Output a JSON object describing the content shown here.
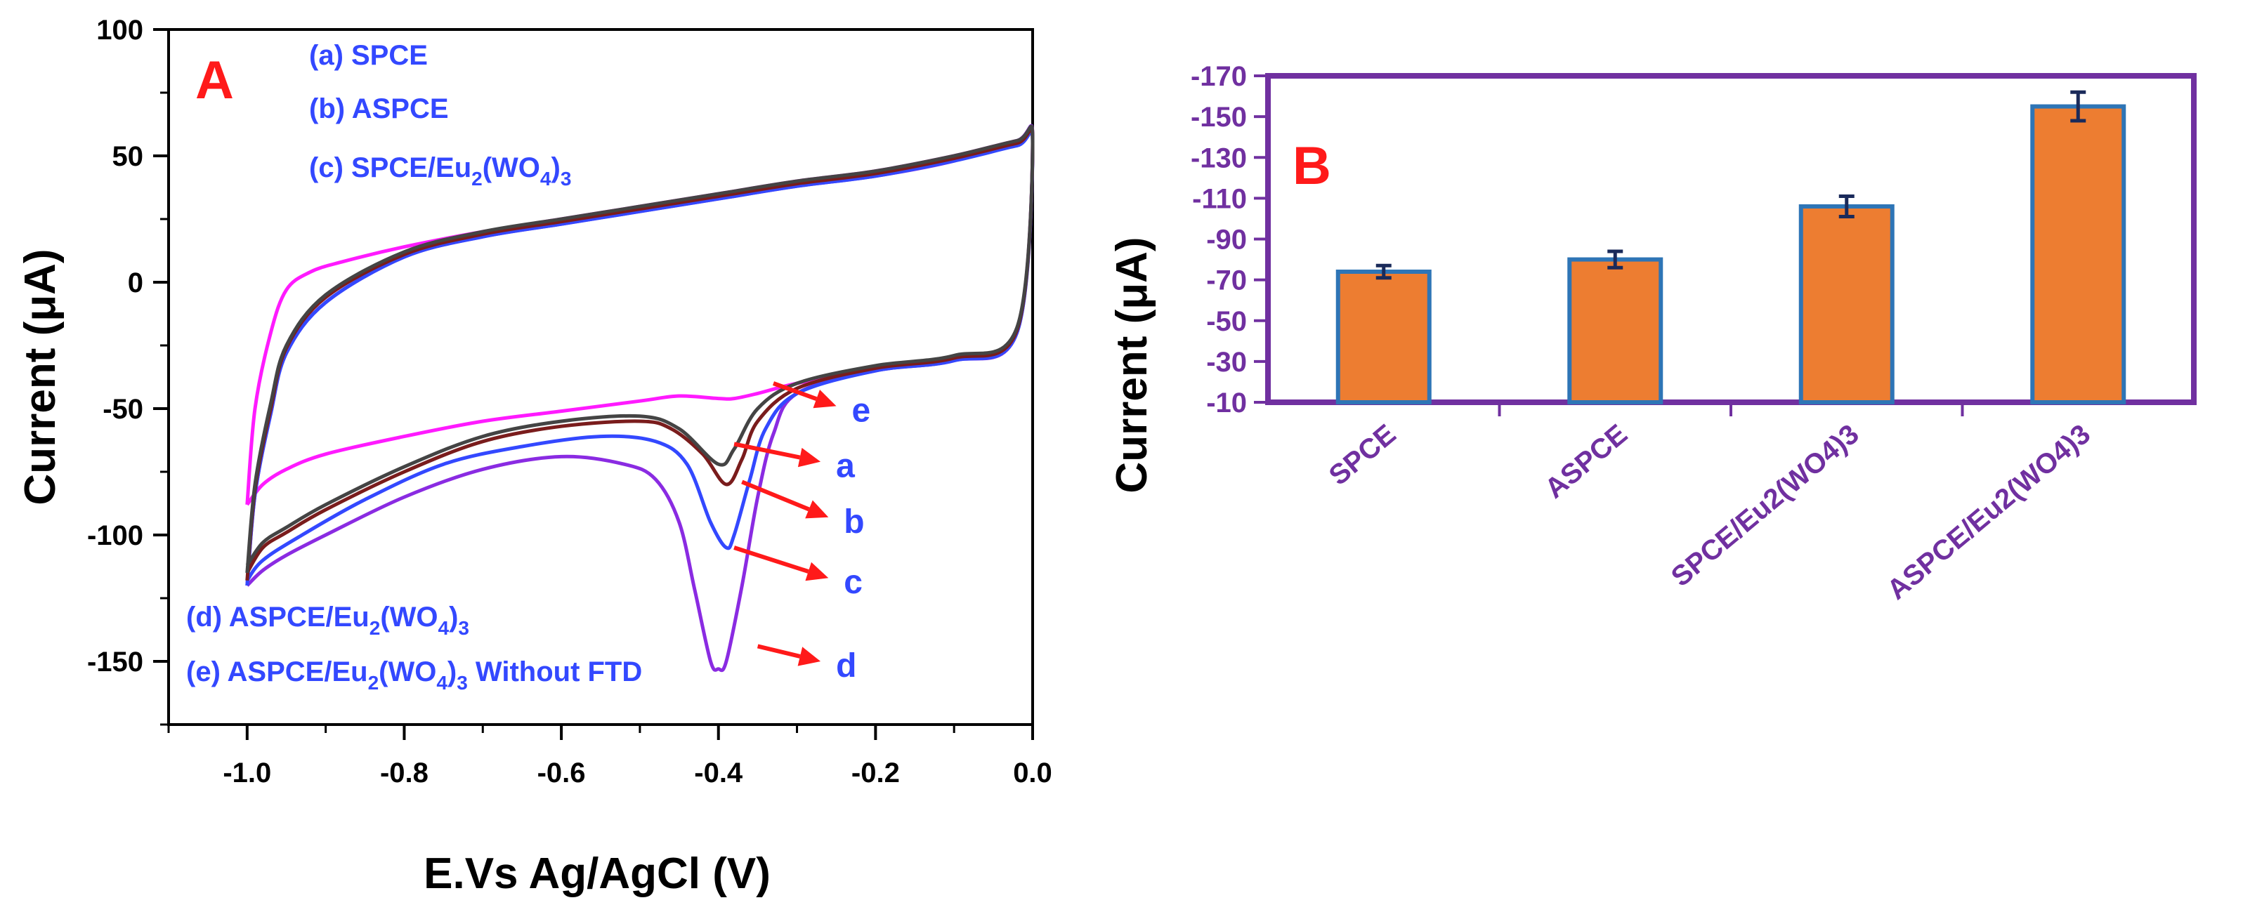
{
  "chart_data": [
    {
      "panel": "A",
      "type": "line",
      "title": "",
      "panel_label": "A",
      "xlabel": "E.Vs Ag/AgCl (V)",
      "ylabel": "Current (μA)",
      "xlim": [
        -1.1,
        0.0
      ],
      "ylim": [
        -175,
        100
      ],
      "xticks": [
        -1.0,
        -0.8,
        -0.6,
        -0.4,
        -0.2,
        0.0
      ],
      "xtick_labels": [
        "-1.0",
        "-0.8",
        "-0.6",
        "-0.4",
        "-0.2",
        "0.0"
      ],
      "yticks": [
        100,
        50,
        0,
        -50,
        -100,
        -150
      ],
      "ytick_labels": [
        "100",
        "50",
        "0",
        "-50",
        "-100",
        "-150"
      ],
      "legend": [
        {
          "key": "a",
          "prefix": "(a) ",
          "text": "SPCE",
          "sub": [],
          "suffix": ""
        },
        {
          "key": "b",
          "prefix": "(b) ",
          "text": "ASPCE",
          "sub": [],
          "suffix": ""
        },
        {
          "key": "c",
          "prefix": "(c) ",
          "text": "SPCE/Eu",
          "sub": [
            "2",
            "(WO",
            "4",
            ")",
            "3"
          ],
          "suffix": ""
        },
        {
          "key": "d",
          "prefix": "(d) ",
          "text": "ASPCE/Eu",
          "sub": [
            "2",
            "(WO",
            "4",
            ")",
            "3"
          ],
          "suffix": ""
        },
        {
          "key": "e",
          "prefix": "(e) ",
          "text": "ASPCE/Eu",
          "sub": [
            "2",
            "(WO",
            "4",
            ")",
            "3"
          ],
          "suffix": " Without FTD"
        }
      ],
      "series": [
        {
          "name": "a",
          "color": "#444444",
          "x": [
            -1.0,
            -0.99,
            -0.97,
            -0.95,
            -0.9,
            -0.8,
            -0.7,
            -0.6,
            -0.5,
            -0.4,
            -0.3,
            -0.2,
            -0.1,
            -0.02,
            0.0,
            -0.02,
            -0.1,
            -0.2,
            -0.3,
            -0.35,
            -0.38,
            -0.4,
            -0.45,
            -0.5,
            -0.6,
            -0.7,
            -0.8,
            -0.9,
            -0.95,
            -0.98,
            -1.0
          ],
          "y": [
            -115,
            -80,
            -48,
            -25,
            -5,
            12,
            20,
            25,
            30,
            35,
            40,
            44,
            50,
            56,
            56,
            -18,
            -29,
            -33,
            -40,
            -50,
            -66,
            -72,
            -58,
            -53,
            -55,
            -61,
            -73,
            -88,
            -97,
            -103,
            -112
          ]
        },
        {
          "name": "b",
          "color": "#7a1c1c",
          "x": [
            -1.0,
            -0.99,
            -0.97,
            -0.95,
            -0.9,
            -0.8,
            -0.7,
            -0.6,
            -0.5,
            -0.4,
            -0.3,
            -0.2,
            -0.1,
            -0.02,
            0.0,
            -0.02,
            -0.1,
            -0.2,
            -0.3,
            -0.35,
            -0.37,
            -0.39,
            -0.42,
            -0.46,
            -0.5,
            -0.6,
            -0.7,
            -0.8,
            -0.9,
            -0.95,
            -0.98,
            -1.0
          ],
          "y": [
            -118,
            -82,
            -50,
            -26,
            -6,
            11,
            19,
            24,
            29,
            34,
            39,
            43,
            49,
            55,
            55,
            -19,
            -30,
            -34,
            -42,
            -55,
            -70,
            -80,
            -68,
            -58,
            -55,
            -57,
            -63,
            -75,
            -90,
            -99,
            -105,
            -115
          ]
        },
        {
          "name": "c",
          "color": "#3348ff",
          "x": [
            -1.0,
            -0.99,
            -0.97,
            -0.95,
            -0.9,
            -0.8,
            -0.7,
            -0.6,
            -0.5,
            -0.4,
            -0.3,
            -0.2,
            -0.1,
            -0.02,
            0.0,
            -0.02,
            -0.1,
            -0.2,
            -0.3,
            -0.34,
            -0.36,
            -0.38,
            -0.39,
            -0.41,
            -0.44,
            -0.48,
            -0.55,
            -0.65,
            -0.75,
            -0.85,
            -0.93,
            -0.98,
            -1.0
          ],
          "y": [
            -120,
            -84,
            -52,
            -28,
            -8,
            10,
            18,
            23,
            28,
            33,
            38,
            42,
            48,
            54,
            54,
            -20,
            -31,
            -35,
            -44,
            -58,
            -78,
            -100,
            -105,
            -95,
            -72,
            -63,
            -61,
            -65,
            -72,
            -86,
            -100,
            -110,
            -118
          ]
        },
        {
          "name": "d",
          "color": "#8a2be2",
          "x": [
            -1.0,
            -0.99,
            -0.97,
            -0.95,
            -0.9,
            -0.8,
            -0.7,
            -0.6,
            -0.5,
            -0.4,
            -0.3,
            -0.2,
            -0.1,
            -0.02,
            0.0,
            -0.02,
            -0.1,
            -0.2,
            -0.3,
            -0.33,
            -0.35,
            -0.37,
            -0.39,
            -0.4,
            -0.41,
            -0.43,
            -0.45,
            -0.48,
            -0.52,
            -0.6,
            -0.7,
            -0.8,
            -0.9,
            -0.95,
            -0.98,
            -1.0
          ],
          "y": [
            -120,
            -84,
            -52,
            -28,
            -8,
            10,
            18,
            23,
            28,
            33,
            38,
            42,
            48,
            56,
            56,
            -20,
            -31,
            -35,
            -44,
            -60,
            -85,
            -120,
            -150,
            -153,
            -150,
            -122,
            -95,
            -78,
            -72,
            -69,
            -74,
            -85,
            -100,
            -108,
            -114,
            -120
          ]
        },
        {
          "name": "e",
          "color": "#ff1aff",
          "x": [
            -1.0,
            -0.99,
            -0.97,
            -0.95,
            -0.92,
            -0.88,
            -0.8,
            -0.7,
            -0.6,
            -0.5,
            -0.4,
            -0.3,
            -0.2,
            -0.1,
            -0.02,
            0.0,
            -0.02,
            -0.1,
            -0.2,
            -0.3,
            -0.35,
            -0.38,
            -0.4,
            -0.45,
            -0.5,
            -0.6,
            -0.7,
            -0.8,
            -0.9,
            -0.95,
            -0.98,
            -1.0
          ],
          "y": [
            -88,
            -50,
            -20,
            -3,
            4,
            8,
            14,
            20,
            25,
            30,
            35,
            40,
            44,
            50,
            56,
            56,
            -19,
            -30,
            -34,
            -40,
            -44,
            -46,
            -46,
            -45,
            -47,
            -51,
            -55,
            -61,
            -68,
            -74,
            -80,
            -88
          ]
        }
      ],
      "arrows": [
        {
          "label": "e",
          "from": [
            -0.33,
            -40
          ],
          "to": [
            -0.25,
            -49
          ]
        },
        {
          "label": "a",
          "from": [
            -0.38,
            -64
          ],
          "to": [
            -0.27,
            -71
          ]
        },
        {
          "label": "b",
          "from": [
            -0.37,
            -79
          ],
          "to": [
            -0.26,
            -93
          ]
        },
        {
          "label": "c",
          "from": [
            -0.38,
            -105
          ],
          "to": [
            -0.26,
            -117
          ]
        },
        {
          "label": "d",
          "from": [
            -0.35,
            -144
          ],
          "to": [
            -0.27,
            -150
          ]
        }
      ]
    },
    {
      "panel": "B",
      "type": "bar",
      "title": "",
      "panel_label": "B",
      "xlabel": "",
      "ylabel": "Current (μA)",
      "ylim": [
        -170,
        -10
      ],
      "yaxis_inverted": true,
      "yticks": [
        -170,
        -150,
        -130,
        -110,
        -90,
        -70,
        -50,
        -30,
        -10
      ],
      "ytick_labels": [
        "-170",
        "-150",
        "-130",
        "-110",
        "-90",
        "-70",
        "-50",
        "-30",
        "-10"
      ],
      "categories": [
        "SPCE",
        "ASPCE",
        "SPCE/Eu2(WO4)3",
        "ASPCE/Eu2(WO4)3"
      ],
      "values": [
        -74,
        -80,
        -106,
        -155
      ],
      "errors": [
        3,
        4,
        5,
        7
      ],
      "bar_color": "#ed7d31",
      "edge_color": "#2e75b6"
    }
  ]
}
